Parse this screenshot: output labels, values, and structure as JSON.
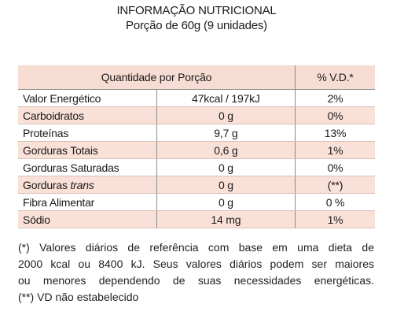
{
  "header": {
    "title": "INFORMAÇÃO NUTRICIONAL",
    "serving": "Porção de 60g (9 unidades)"
  },
  "table": {
    "columns": [
      "Quantidade por Porção",
      "% V.D.*"
    ],
    "rows": [
      {
        "name": "Valor Energético",
        "amount": "47kcal / 197kJ",
        "dv": "2%"
      },
      {
        "name": "Carboidratos",
        "amount": "0 g",
        "dv": "0%"
      },
      {
        "name": "Proteínas",
        "amount": "9,7 g",
        "dv": "13%"
      },
      {
        "name": "Gorduras Totais",
        "amount": "0,6 g",
        "dv": "1%"
      },
      {
        "name": "Gorduras Saturadas",
        "amount": "0 g",
        "dv": "0%"
      },
      {
        "name": "Gorduras",
        "name_italic": "trans",
        "amount": "0 g",
        "dv": "(**)"
      },
      {
        "name": "Fibra Alimentar",
        "amount": "0 g",
        "dv": "0 %"
      },
      {
        "name": "Sódio",
        "amount": "14 mg",
        "dv": "1%"
      }
    ]
  },
  "footnotes": {
    "line1": "(*) Valores diários de referência com base em uma dieta de",
    "line2": "2000 kcal ou 8400 kJ. Seus valores diários podem ser maiores",
    "line3": "ou menores dependendo de suas necessidades energéticas.",
    "line4": "(**) VD não estabelecido"
  },
  "colors": {
    "header_band": "#f6dcd3",
    "alt_row": "#f9e1d8"
  }
}
